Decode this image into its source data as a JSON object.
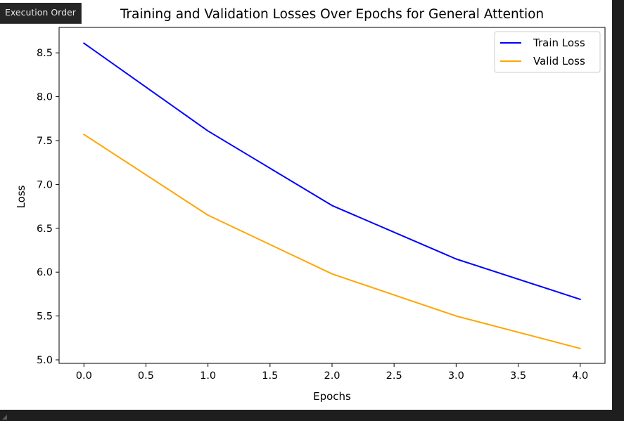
{
  "tooltip": {
    "label": "Execution Order"
  },
  "chart_data": {
    "type": "line",
    "title": "Training and Validation Losses Over Epochs for General Attention",
    "xlabel": "Epochs",
    "ylabel": "Loss",
    "x": [
      0,
      1,
      2,
      3,
      4
    ],
    "series": [
      {
        "name": "Train Loss",
        "color": "#0000ff",
        "values": [
          8.61,
          7.61,
          6.76,
          6.15,
          5.69
        ]
      },
      {
        "name": "Valid Loss",
        "color": "#ffa500",
        "values": [
          7.57,
          6.65,
          5.98,
          5.5,
          5.13
        ]
      }
    ],
    "xlim": [
      -0.2,
      4.2
    ],
    "ylim": [
      4.96,
      8.79
    ],
    "xticks": [
      0.0,
      0.5,
      1.0,
      1.5,
      2.0,
      2.5,
      3.0,
      3.5,
      4.0
    ],
    "xtick_labels": [
      "0.0",
      "0.5",
      "1.0",
      "1.5",
      "2.0",
      "2.5",
      "3.0",
      "3.5",
      "4.0"
    ],
    "yticks": [
      5.0,
      5.5,
      6.0,
      6.5,
      7.0,
      7.5,
      8.0,
      8.5
    ],
    "ytick_labels": [
      "5.0",
      "5.5",
      "6.0",
      "6.5",
      "7.0",
      "7.5",
      "8.0",
      "8.5"
    ],
    "grid": false,
    "legend": "top-right"
  }
}
